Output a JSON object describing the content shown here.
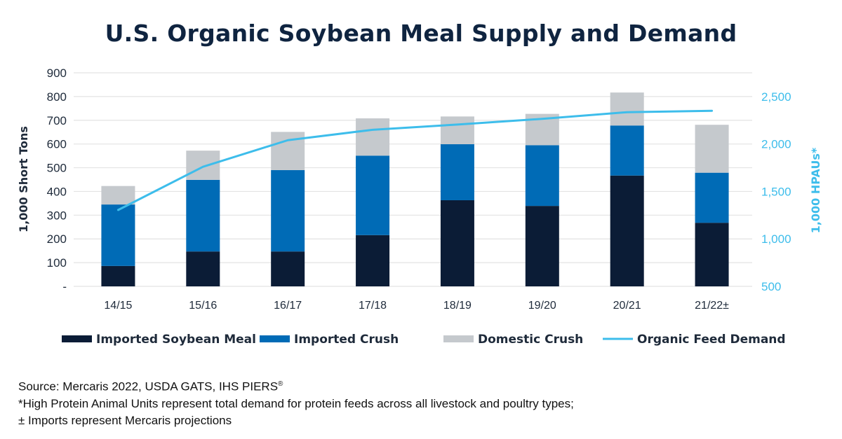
{
  "chart_data": {
    "type": "bar",
    "stacked": true,
    "title": "U.S. Organic Soybean Meal Supply and Demand",
    "xlabel": "",
    "ylabel": "1,000 Short Tons",
    "y2label": "1,000 HPAUs*",
    "categories": [
      "14/15",
      "15/16",
      "16/17",
      "17/18",
      "18/19",
      "19/20",
      "20/21",
      "21/22±"
    ],
    "ylim": [
      0,
      900
    ],
    "yticks": [
      0,
      100,
      200,
      300,
      400,
      500,
      600,
      700,
      800,
      900
    ],
    "ytick_labels": [
      "-",
      "100",
      "200",
      "300",
      "400",
      "500",
      "600",
      "700",
      "800",
      "900"
    ],
    "y2lim": [
      500,
      2750
    ],
    "y2ticks": [
      500,
      1000,
      1500,
      2000,
      2500
    ],
    "y2tick_labels": [
      "500",
      "1,000",
      "1,500",
      "2,000",
      "2,500"
    ],
    "grid": true,
    "legend_position": "bottom",
    "series": [
      {
        "name": "Imported Soybean Meal",
        "type": "bar",
        "axis": "left",
        "color": "#0B1C36",
        "values": [
          86,
          147,
          147,
          216,
          363,
          339,
          467,
          268
        ]
      },
      {
        "name": "Imported Crush",
        "type": "bar",
        "axis": "left",
        "color": "#006BB6",
        "values": [
          259,
          302,
          343,
          335,
          236,
          256,
          211,
          211
        ]
      },
      {
        "name": "Domestic Crush",
        "type": "bar",
        "axis": "left",
        "color": "#C5C9CD",
        "values": [
          78,
          123,
          161,
          157,
          117,
          132,
          139,
          202
        ]
      },
      {
        "name": "Organic Feed Demand",
        "type": "line",
        "axis": "right",
        "color": "#3DBDEB",
        "values": [
          1305,
          1760,
          2040,
          2150,
          2205,
          2265,
          2335,
          2350
        ]
      }
    ]
  },
  "footnotes": {
    "source": "Source: Mercaris 2022, USDA GATS, IHS PIERS",
    "source_mark": "®",
    "hpau_note": "*High Protein Animal Units represent total demand for protein feeds across all livestock and poultry types;",
    "imports_note": "± Imports represent Mercaris projections"
  }
}
